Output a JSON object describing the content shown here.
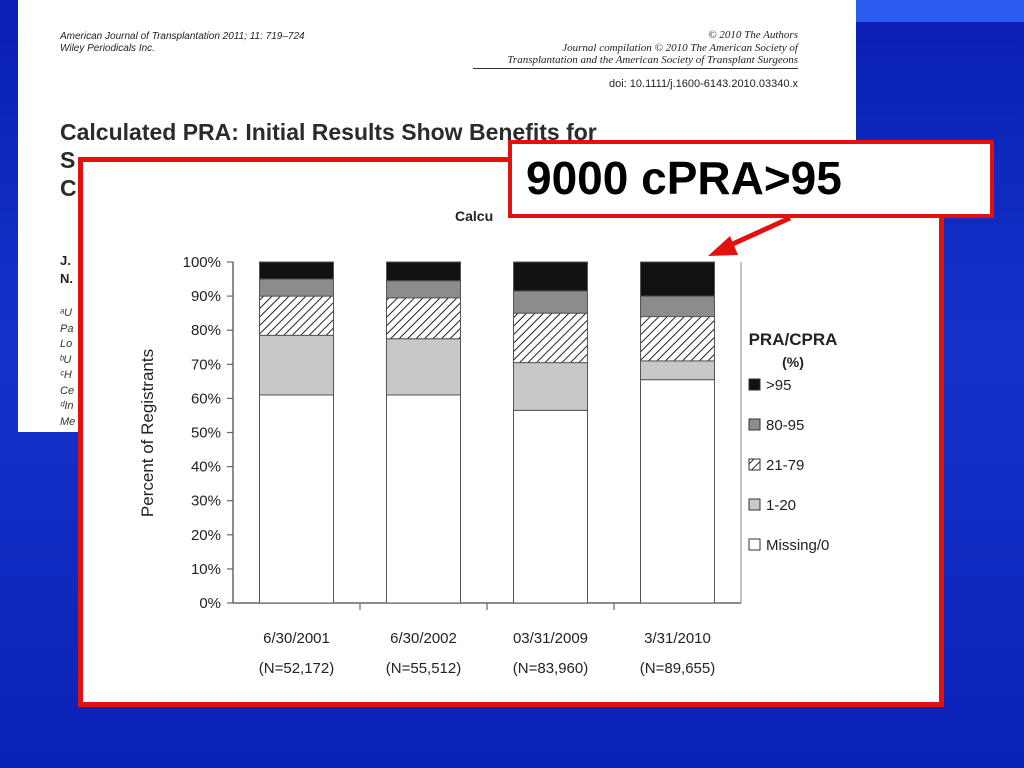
{
  "paper": {
    "journal_line1": "American Journal of Transplantation 2011; 11: 719–724",
    "journal_line2": "Wiley Periodicals Inc.",
    "copyright_line1": "© 2010 The Authors",
    "copyright_line2": "Journal compilation © 2010 The American Society of",
    "copyright_line3": "Transplantation and the American Society of Transplant Surgeons",
    "doi": "doi: 10.1111/j.1600-6143.2010.03340.x",
    "title_line1": "Calculated PRA: Initial Results Show Benefits for",
    "title_line2": "S",
    "title_line3": "C",
    "author_line1": "J.",
    "author_line2": "N.",
    "affil_lines": [
      "ᵃU",
      "Pa",
      "Lo",
      "ᵇU",
      "ᶜH",
      "Ce",
      "ᵈIn",
      "Me"
    ]
  },
  "figure": {
    "title_fragment": "Calcu"
  },
  "callout": {
    "text": "9000 cPRA>95"
  },
  "colors": {
    "background": "#1432c8",
    "accent_red": "#e41010",
    "band_gt95": "#111111",
    "band_80_95": "#8c8c8c",
    "band_1_20": "#c8c8c8",
    "band_missing": "#ffffff"
  },
  "chart_data": {
    "type": "bar",
    "stacked": true,
    "ylabel": "Percent of Registrants",
    "ylim": [
      0,
      100
    ],
    "yticks": [
      "0%",
      "10%",
      "20%",
      "30%",
      "40%",
      "50%",
      "60%",
      "70%",
      "80%",
      "90%",
      "100%"
    ],
    "categories": [
      "6/30/2001",
      "6/30/2002",
      "03/31/2009",
      "3/31/2010"
    ],
    "category_sublabels": [
      "(N=52,172)",
      "(N=55,512)",
      "(N=83,960)",
      "(N=89,655)"
    ],
    "legend_title_line1": "PRA/CPRA",
    "legend_title_line2": "(%)",
    "legend_position": "right",
    "series": [
      {
        "name": "Missing/0",
        "values": [
          61,
          61,
          56.5,
          65.5
        ]
      },
      {
        "name": "1-20",
        "values": [
          17.5,
          16.5,
          14,
          5.5
        ]
      },
      {
        "name": "21-79",
        "values": [
          11.5,
          12,
          14.5,
          13
        ]
      },
      {
        "name": "80-95",
        "values": [
          5,
          5,
          6.5,
          6
        ]
      },
      {
        "name": ">95",
        "values": [
          5,
          5.5,
          8.5,
          10
        ]
      }
    ],
    "legend_order": [
      ">95",
      "80-95",
      "21-79",
      "1-20",
      "Missing/0"
    ]
  }
}
